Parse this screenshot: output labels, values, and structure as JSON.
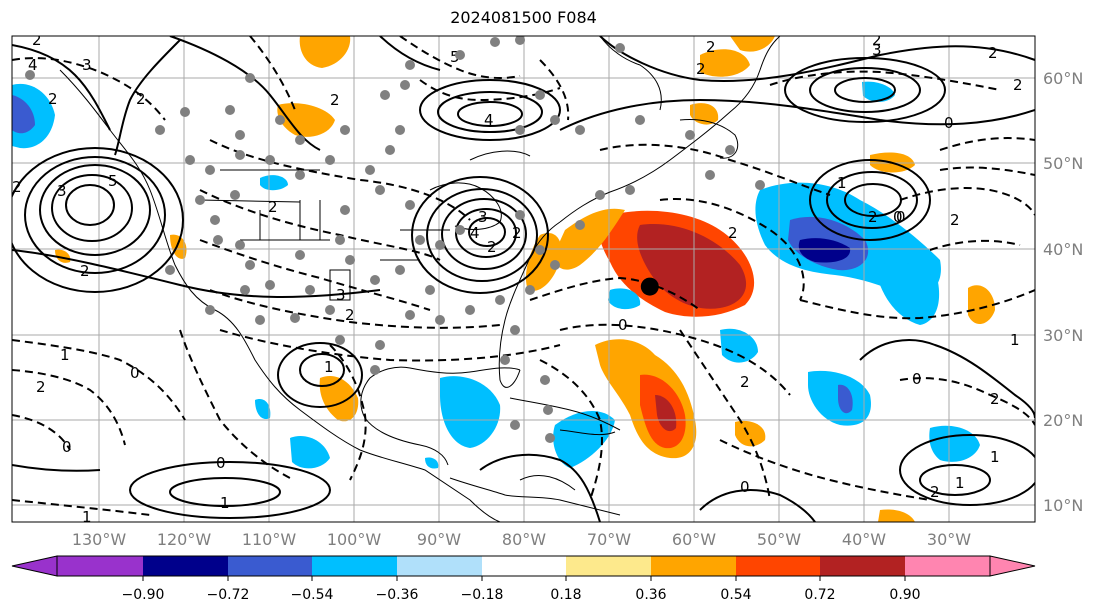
{
  "title": "2024081500 F084",
  "lon_labels": [
    "130°W",
    "120°W",
    "110°W",
    "100°W",
    "90°W",
    "80°W",
    "70°W",
    "60°W",
    "50°W",
    "40°W",
    "30°W"
  ],
  "lat_labels": [
    "60°N",
    "50°N",
    "40°N",
    "30°N",
    "20°N",
    "10°N"
  ],
  "colorbar": {
    "ticks": [
      "−0.90",
      "−0.72",
      "−0.54",
      "−0.36",
      "−0.18",
      "0.18",
      "0.36",
      "0.54",
      "0.72",
      "0.90"
    ],
    "colors": [
      "#9932cc",
      "#00008b",
      "#3a5bd0",
      "#00bfff",
      "#b0e0fa",
      "#ffffff",
      "#fde98c",
      "#ffa500",
      "#ff4500",
      "#b22222",
      "#ff85b0"
    ]
  },
  "contour_labels": [
    "2",
    "3",
    "4",
    "5",
    "2",
    "2",
    "3",
    "4",
    "5",
    "2",
    "2",
    "2",
    "2",
    "3",
    "2",
    "4",
    "2",
    "3",
    "2",
    "1",
    "2",
    "2",
    "3",
    "1",
    "2",
    "0",
    "1",
    "0",
    "1",
    "0",
    "0",
    "0",
    "2",
    "0",
    "1",
    "2",
    "1",
    "0",
    "2",
    "2",
    "0",
    "2",
    "1",
    "0",
    "2",
    "2",
    "1",
    "2",
    "2"
  ],
  "marker": {
    "lon": -65.2,
    "lat": 35.6
  }
}
